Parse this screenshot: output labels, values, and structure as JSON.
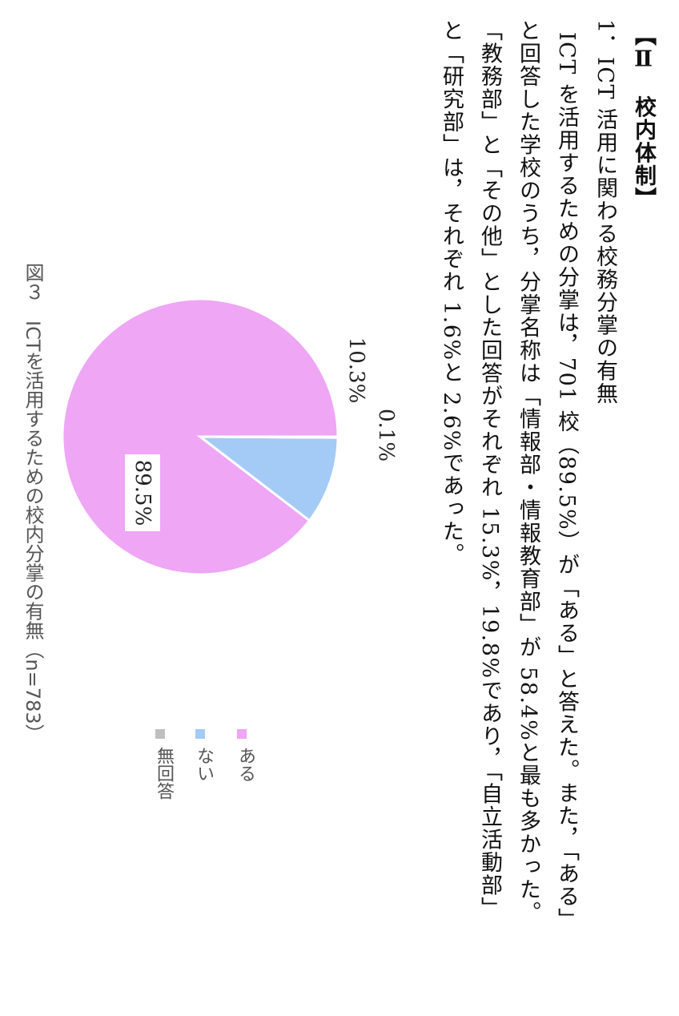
{
  "section": {
    "heading": "【Ⅱ　校内体制】",
    "subheading": "1．ICT 活用に関わる校務分掌の有無",
    "paragraph_lines": [
      "ICT を活用するための分掌は，701 校（89.5%）が「ある」と答えた。また，「ある」",
      "と回答した学校のうち，分掌名称は「情報部・情報教育部」が 58.4%と最も多かった。",
      "「教務部」と「その他」とした回答がそれぞれ 15.3%，19.8%であり，「自立活動部」",
      "と「研究部」は，それぞれ 1.6%と 2.6%であった。"
    ]
  },
  "figure": {
    "caption": "図３　ICTを活用するための校内分掌の有無（n=783）"
  },
  "chart_data": {
    "type": "pie",
    "categories": [
      "ある",
      "ない",
      "無回答"
    ],
    "values": [
      89.5,
      10.3,
      0.1
    ],
    "data_labels": [
      "89.5%",
      "10.3%",
      "0.1%"
    ],
    "colors": [
      "#eea6f5",
      "#a4cbf5",
      "#bfbfbf"
    ],
    "legend": [
      "ある",
      "ない",
      "無回答"
    ],
    "legend_placement": "bottom",
    "title": "",
    "orientation": "rotated 90 degrees clockwise"
  }
}
